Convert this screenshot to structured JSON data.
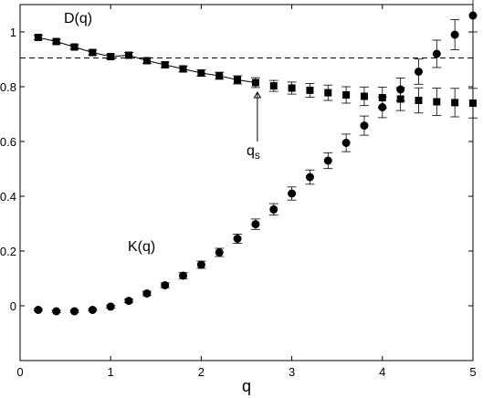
{
  "chart_data": {
    "type": "scatter",
    "xlabel": "q",
    "ylabel": "",
    "xlim": [
      0,
      5
    ],
    "ylim": [
      -0.2,
      1.1
    ],
    "x_ticks": [
      0,
      1,
      2,
      3,
      4,
      5
    ],
    "y_ticks": [
      0,
      0.2,
      0.4,
      0.6,
      0.8,
      1
    ],
    "x_tick_labels": [
      "0",
      "1",
      "2",
      "3",
      "4",
      "5"
    ],
    "y_tick_labels": [
      "0",
      "0.2",
      "0.4",
      "0.6",
      "0.8",
      "1"
    ],
    "grid": false,
    "reference_line": {
      "y": 0.905,
      "style": "dashed"
    },
    "annotations": {
      "d_label": "D(q)",
      "k_label": "K(q)",
      "qs_main": "q",
      "qs_sub": "s",
      "qs_arrow_x": 2.62,
      "qs_arrow_from_y": 0.6,
      "qs_arrow_to_y": 0.78
    },
    "series": [
      {
        "marker": "square",
        "fit_line_x_max": 2.6,
        "x": [
          0.2,
          0.4,
          0.6,
          0.8,
          1.0,
          1.2,
          1.4,
          1.6,
          1.8,
          2.0,
          2.2,
          2.4,
          2.6,
          2.8,
          3.0,
          3.2,
          3.4,
          3.6,
          3.8,
          4.0,
          4.2,
          4.4,
          4.6,
          4.8,
          5.0
        ],
        "y": [
          0.98,
          0.965,
          0.945,
          0.925,
          0.91,
          0.915,
          0.895,
          0.88,
          0.865,
          0.85,
          0.84,
          0.825,
          0.815,
          0.803,
          0.795,
          0.787,
          0.778,
          0.77,
          0.765,
          0.76,
          0.755,
          0.75,
          0.745,
          0.742,
          0.74
        ],
        "err": [
          0.008,
          0.008,
          0.008,
          0.009,
          0.009,
          0.01,
          0.01,
          0.01,
          0.011,
          0.012,
          0.013,
          0.015,
          0.018,
          0.02,
          0.022,
          0.025,
          0.028,
          0.03,
          0.034,
          0.038,
          0.042,
          0.046,
          0.05,
          0.052,
          0.054
        ]
      },
      {
        "marker": "circle",
        "x": [
          0.2,
          0.4,
          0.6,
          0.8,
          1.0,
          1.2,
          1.4,
          1.6,
          1.8,
          2.0,
          2.2,
          2.4,
          2.6,
          2.8,
          3.0,
          3.2,
          3.4,
          3.6,
          3.8,
          4.0,
          4.2,
          4.4,
          4.6,
          4.8,
          5.0
        ],
        "y": [
          -0.015,
          -0.02,
          -0.02,
          -0.015,
          -0.003,
          0.018,
          0.045,
          0.075,
          0.11,
          0.15,
          0.195,
          0.245,
          0.298,
          0.352,
          0.41,
          0.47,
          0.53,
          0.595,
          0.658,
          0.725,
          0.79,
          0.855,
          0.92,
          0.99,
          1.06
        ],
        "err": [
          0.004,
          0.004,
          0.004,
          0.004,
          0.005,
          0.006,
          0.008,
          0.009,
          0.011,
          0.013,
          0.015,
          0.017,
          0.019,
          0.021,
          0.024,
          0.026,
          0.029,
          0.032,
          0.035,
          0.038,
          0.042,
          0.046,
          0.05,
          0.055,
          0.06
        ]
      }
    ]
  }
}
